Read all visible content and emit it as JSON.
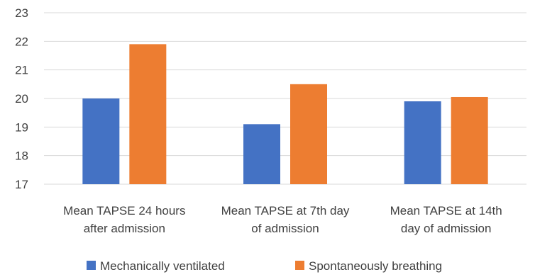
{
  "chart_data": {
    "type": "bar",
    "categories": [
      [
        "Mean TAPSE 24 hours",
        "after admission"
      ],
      [
        "Mean TAPSE at 7th day",
        "of admission"
      ],
      [
        "Mean TAPSE at 14th",
        "day of admission"
      ]
    ],
    "series": [
      {
        "name": "Mechanically ventilated",
        "color": "#4472c4",
        "values": [
          20.0,
          19.1,
          19.9
        ]
      },
      {
        "name": "Spontaneously breathing",
        "color": "#ed7d31",
        "values": [
          21.9,
          20.5,
          20.05
        ]
      }
    ],
    "ylim": [
      17,
      23
    ],
    "yticks": [
      "17",
      "18",
      "19",
      "20",
      "21",
      "22",
      "23"
    ],
    "grid": true,
    "legend": "bottom"
  }
}
